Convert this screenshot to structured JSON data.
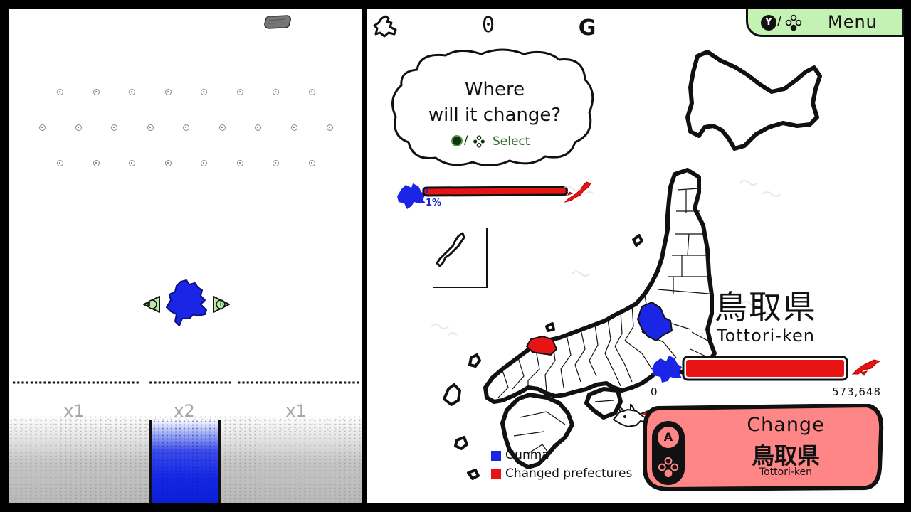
{
  "colors": {
    "home_prefecture": "#1a25e6",
    "changed_prefecture": "#e81414",
    "bucket_water": "#1327e6",
    "change_button": "#ff8686",
    "menu_button": "#c3f2b4",
    "select_green": "#2c6b22"
  },
  "pachinko": {
    "shoulder_left_label": "L",
    "shoulder_right_label": "R",
    "multipliers": [
      "x1",
      "x2",
      "x1"
    ]
  },
  "hud": {
    "score": "0",
    "currency_glyph": "G",
    "menu": {
      "y_button": "Y",
      "slash": "/",
      "label": "Menu"
    }
  },
  "prompt": {
    "line1": "Where",
    "line2": "will it change?",
    "select_slash": "/",
    "select_label": "Select"
  },
  "progress": {
    "percent_label": "1%",
    "fraction": 0.01
  },
  "target_prefecture": {
    "name_jp": "鳥取県",
    "name_romaji": "Tottori-ken",
    "bar_min": "0",
    "bar_max": "573,648",
    "bar_fraction": 1.0
  },
  "change_button": {
    "a_button": "A",
    "label": "Change",
    "pref_jp": "鳥取県",
    "pref_romaji": "Tottori-ken"
  },
  "legend": [
    {
      "label": "Gunma",
      "color": "#1a25e6"
    },
    {
      "label": "Changed prefectures",
      "color": "#e81414"
    }
  ]
}
